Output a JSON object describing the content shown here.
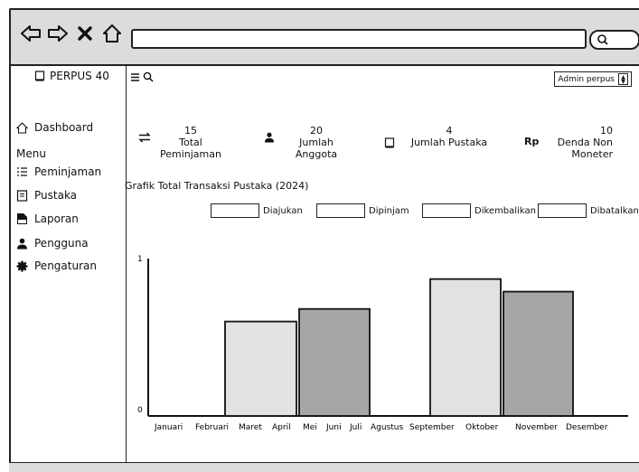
{
  "sidebar": {
    "brand": "PERPUS 40",
    "dashboard": "Dashboard",
    "menu_label": "Menu",
    "items": [
      {
        "label": "Peminjaman",
        "icon": "list-icon"
      },
      {
        "label": "Pustaka",
        "icon": "book-list-icon"
      },
      {
        "label": "Laporan",
        "icon": "report-pdf-icon"
      },
      {
        "label": "Pengguna",
        "icon": "user-icon"
      },
      {
        "label": "Pengaturan",
        "icon": "gear-icon"
      }
    ]
  },
  "header": {
    "user_select": "Admin perpus"
  },
  "stats": [
    {
      "value": "15",
      "label1": "Total",
      "label2": "Peminjaman",
      "icon": "exchange-icon"
    },
    {
      "value": "20",
      "label1": "Jumlah",
      "label2": "Anggota",
      "icon": "user-icon"
    },
    {
      "value": "4",
      "label1": "Jumlah Pustaka",
      "label2": "",
      "icon": "book-icon"
    },
    {
      "value": "10",
      "label1": "Denda Non",
      "label2": "Moneter",
      "icon": "rupiah-icon",
      "icon_text": "Rp"
    }
  ],
  "chart_data": {
    "type": "bar",
    "title": "Grafik Total Transaksi Pustaka (2024)",
    "categories": [
      "Januari",
      "Februari",
      "Maret",
      "April",
      "Mei",
      "Juni",
      "Juli",
      "Agustus",
      "September",
      "Oktober",
      "November",
      "Desember"
    ],
    "series": [
      {
        "name": "Diajukan",
        "values": [
          0,
          0,
          0,
          0,
          0,
          0,
          0,
          0,
          0,
          0,
          0,
          0
        ],
        "color": "#ffffff"
      },
      {
        "name": "Dipinjam",
        "values": [
          0,
          0,
          0,
          0,
          0,
          0,
          0,
          0,
          0,
          0,
          0,
          0
        ],
        "color": "#ffffff"
      },
      {
        "name": "Dikembalikan",
        "values": [
          0,
          0,
          0,
          0,
          0,
          0,
          0,
          0,
          0,
          0,
          0,
          0
        ],
        "color": "#ffffff"
      },
      {
        "name": "Dibatalkan",
        "values": [
          0,
          0,
          0,
          0,
          0,
          0,
          0,
          0,
          0,
          0,
          0,
          0
        ],
        "color": "#ffffff"
      }
    ],
    "ylim": [
      0,
      1
    ],
    "yticks": [
      "0",
      "1"
    ],
    "legend": "top",
    "placeholder_bars": [
      {
        "label": "bar-1",
        "value": 0.6,
        "color": "#e2e2e2"
      },
      {
        "label": "bar-2",
        "value": 0.68,
        "color": "#a6a6a6"
      },
      {
        "label": "bar-3",
        "value": 0.87,
        "color": "#e2e2e2"
      },
      {
        "label": "bar-4",
        "value": 0.79,
        "color": "#a6a6a6"
      }
    ]
  }
}
